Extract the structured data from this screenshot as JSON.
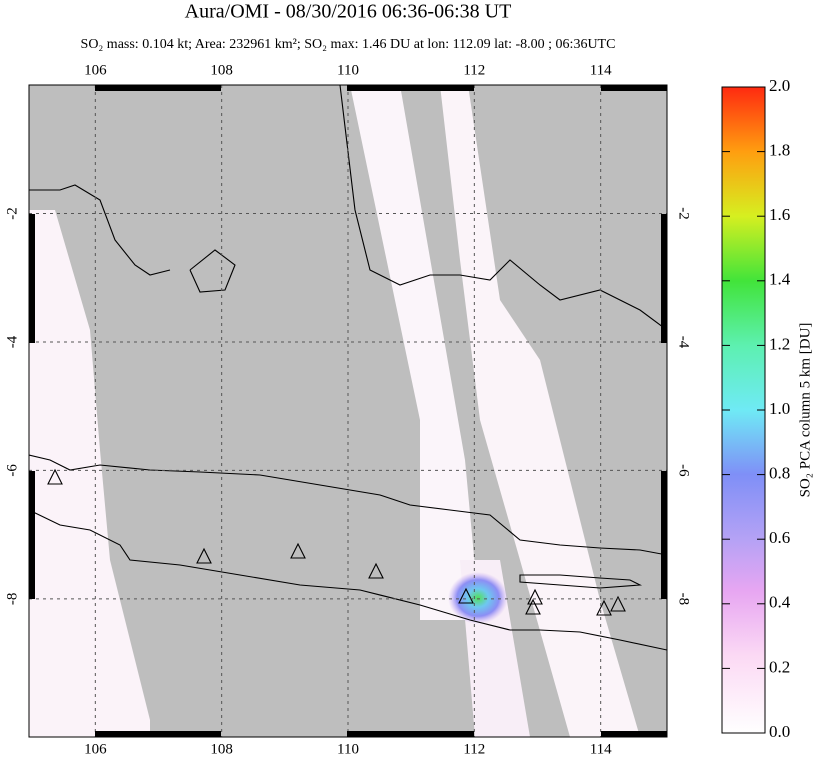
{
  "chart_data": {
    "type": "map",
    "title": "Aura/OMI - 08/30/2016 06:36-06:38 UT",
    "subtitle": "SO₂ mass: 0.104 kt; Area: 232961 km²; SO₂ max: 1.46 DU at lon: 112.09 lat: -8.00 ; 06:36UTC",
    "xlim": [
      104.95,
      115.05
    ],
    "xticks": [
      106,
      108,
      110,
      112,
      114
    ],
    "ylim": [
      -10.15,
      0
    ],
    "yticks": [
      -2,
      -4,
      -6,
      -8
    ],
    "grid": true,
    "colorbar": {
      "label": "SO₂ PCA column 5 km [DU]",
      "lim": [
        0,
        2
      ],
      "ticks": [
        {
          "value": 0,
          "label": "0.0"
        },
        0.2,
        0.4,
        0.6,
        0.8,
        {
          "value": 1,
          "label": "1.0"
        },
        1.2,
        1.4,
        1.6,
        1.8,
        {
          "value": 2,
          "label": "2.0"
        }
      ]
    }
  }
}
